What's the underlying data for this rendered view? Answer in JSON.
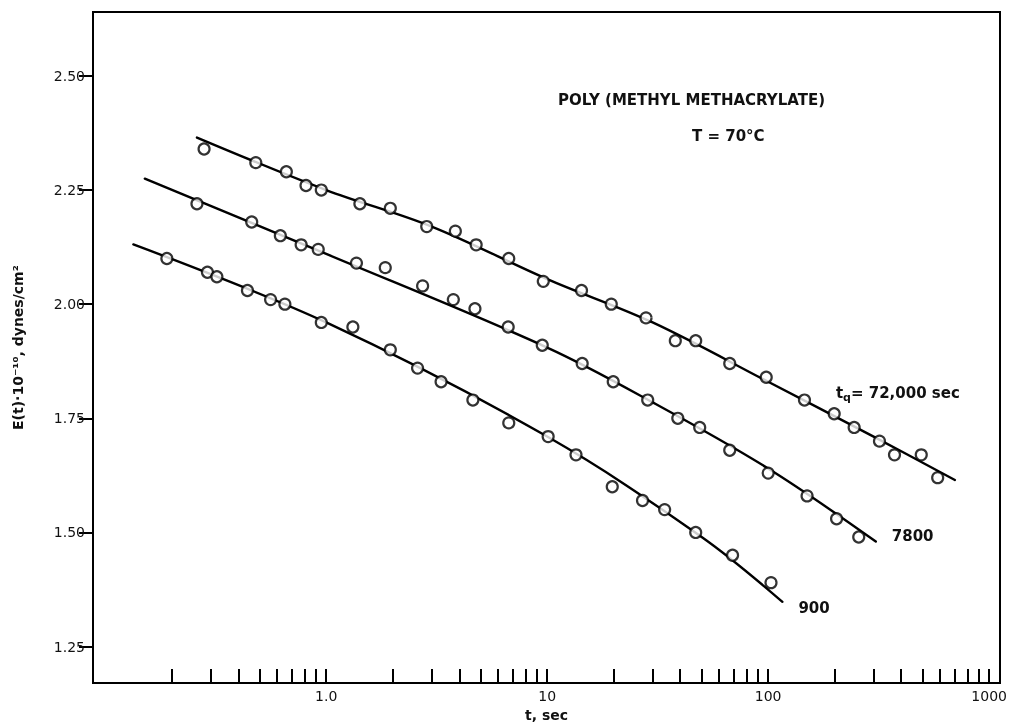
{
  "chart_data": {
    "type": "scatter",
    "xlabel": "t, sec",
    "ylabel": "E(t)·10⁻¹⁰, dynes/cm²",
    "annotations": [
      "POLY (METHYL METHACRYLATE)",
      "T = 70°C"
    ],
    "log": "x",
    "grid": false,
    "marker": "circle",
    "xlim": [
      0.088,
      1120
    ],
    "ylim": [
      1.17,
      2.64
    ],
    "xticks": [
      {
        "value": 0.2,
        "label": null
      },
      {
        "value": 0.3,
        "label": null
      },
      {
        "value": 0.4,
        "label": null
      },
      {
        "value": 0.5,
        "label": null
      },
      {
        "value": 0.6,
        "label": null
      },
      {
        "value": 0.7,
        "label": null
      },
      {
        "value": 0.8,
        "label": null
      },
      {
        "value": 0.9,
        "label": null
      },
      {
        "value": 1,
        "label": "1.0"
      },
      {
        "value": 2,
        "label": null
      },
      {
        "value": 3,
        "label": null
      },
      {
        "value": 4,
        "label": null
      },
      {
        "value": 5,
        "label": null
      },
      {
        "value": 6,
        "label": null
      },
      {
        "value": 7,
        "label": null
      },
      {
        "value": 8,
        "label": null
      },
      {
        "value": 9,
        "label": null
      },
      10,
      {
        "value": 20,
        "label": null
      },
      {
        "value": 30,
        "label": null
      },
      {
        "value": 40,
        "label": null
      },
      {
        "value": 50,
        "label": null
      },
      {
        "value": 60,
        "label": null
      },
      {
        "value": 70,
        "label": null
      },
      {
        "value": 80,
        "label": null
      },
      {
        "value": 90,
        "label": null
      },
      100,
      {
        "value": 200,
        "label": null
      },
      {
        "value": 300,
        "label": null
      },
      {
        "value": 400,
        "label": null
      },
      {
        "value": 500,
        "label": null
      },
      {
        "value": 600,
        "label": null
      },
      {
        "value": 700,
        "label": null
      },
      {
        "value": 800,
        "label": null
      },
      {
        "value": 900,
        "label": null
      },
      1000
    ],
    "yticks": [
      {
        "value": 1.25,
        "label": "1.25"
      },
      {
        "value": 1.5,
        "label": "1.50"
      },
      {
        "value": 1.75,
        "label": "1.75"
      },
      {
        "value": 2,
        "label": "2.00"
      },
      {
        "value": 2.25,
        "label": "2.25"
      },
      {
        "value": 2.5,
        "label": "2.50"
      }
    ],
    "series": [
      {
        "color": "#000000",
        "x": [
          0.28,
          0.48,
          0.66,
          0.81,
          0.95,
          1.42,
          1.95,
          2.85,
          3.84,
          4.77,
          6.7,
          9.6,
          14.3,
          19.5,
          28,
          38,
          47,
          67,
          98,
          146,
          199,
          245,
          319,
          373,
          493,
          585
        ],
        "values": [
          2.34,
          2.31,
          2.29,
          2.26,
          2.25,
          2.22,
          2.21,
          2.17,
          2.16,
          2.13,
          2.1,
          2.05,
          2.03,
          2.0,
          1.97,
          1.92,
          1.92,
          1.87,
          1.84,
          1.79,
          1.76,
          1.73,
          1.7,
          1.67,
          1.67,
          1.62
        ]
      },
      {
        "color": "#000000",
        "x": [
          0.26,
          0.46,
          0.62,
          0.77,
          0.92,
          1.37,
          1.85,
          2.73,
          3.76,
          4.71,
          6.66,
          9.5,
          14.4,
          19.9,
          28.5,
          39,
          49,
          67,
          100,
          150,
          204,
          257
        ],
        "values": [
          2.22,
          2.18,
          2.15,
          2.13,
          2.12,
          2.09,
          2.08,
          2.04,
          2.01,
          1.99,
          1.95,
          1.91,
          1.87,
          1.83,
          1.79,
          1.75,
          1.73,
          1.68,
          1.63,
          1.58,
          1.53,
          1.49
        ]
      },
      {
        "color": "#000000",
        "x": [
          0.19,
          0.29,
          0.32,
          0.44,
          0.56,
          0.65,
          0.95,
          1.32,
          1.95,
          2.59,
          3.31,
          4.61,
          6.7,
          10.1,
          13.5,
          19.7,
          27,
          34,
          47,
          69,
          103
        ],
        "values": [
          2.1,
          2.07,
          2.06,
          2.03,
          2.01,
          2.0,
          1.96,
          1.95,
          1.9,
          1.86,
          1.83,
          1.79,
          1.74,
          1.71,
          1.67,
          1.6,
          1.57,
          1.55,
          1.5,
          1.45,
          1.39
        ]
      },
      {
        "type": "line",
        "name": "t$_{q}$= 72,000 sec",
        "color": "#000000",
        "marker": "none",
        "x": [
          0.26,
          1,
          3,
          10,
          30,
          100,
          300,
          700
        ],
        "values": [
          2.365,
          2.25,
          2.17,
          2.055,
          1.96,
          1.83,
          1.71,
          1.615
        ]
      },
      {
        "type": "line",
        "name": "7800",
        "color": "#000000",
        "marker": "none",
        "x": [
          0.151,
          1,
          10,
          30,
          100,
          307
        ],
        "values": [
          2.275,
          2.11,
          1.905,
          1.785,
          1.64,
          1.48
        ]
      },
      {
        "type": "line",
        "name": "900",
        "color": "#000000",
        "marker": "none",
        "x": [
          0.134,
          1,
          10,
          50,
          116
        ],
        "values": [
          2.131,
          1.96,
          1.71,
          1.49,
          1.348
        ]
      }
    ]
  }
}
